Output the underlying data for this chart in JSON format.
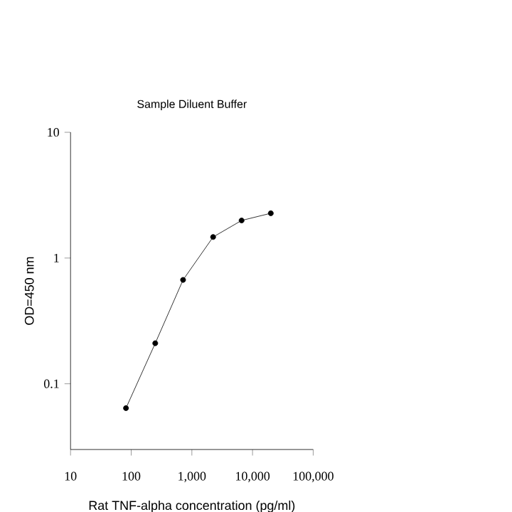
{
  "chart_data": {
    "type": "line",
    "title": "Sample Diluent Buffer",
    "xlabel": "Rat TNF-alpha concentration (pg/ml)",
    "ylabel": "OD=450 nm",
    "log": "xy",
    "marker": "circle",
    "line_style": "solid",
    "color": "#000000",
    "x": [
      82,
      249,
      716,
      2240,
      6600,
      20000
    ],
    "values": [
      0.064,
      0.21,
      0.67,
      1.47,
      1.99,
      2.27
    ],
    "xlim": [
      10,
      100000
    ],
    "ylim": [
      0.03,
      10
    ],
    "xticks": [
      10,
      100,
      {
        "value": 1000,
        "label": "1,000"
      },
      {
        "value": 10000,
        "label": "10,000"
      },
      {
        "value": 100000,
        "label": "100,000"
      }
    ],
    "yticks": [
      0.1,
      1,
      10
    ]
  }
}
